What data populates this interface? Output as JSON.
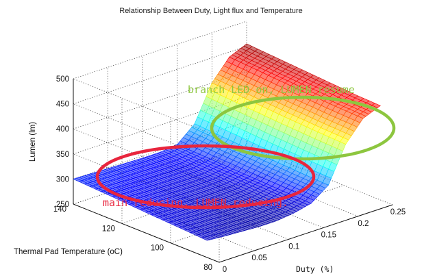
{
  "chart_data": {
    "type": "surface3d",
    "title": "Relationship Between Duty, Light flux and Temperature",
    "xlabel": "Duty (%)",
    "ylabel": "Thermal Pad Temperature (oC)",
    "zlabel": "Lumen (lm)",
    "xlim": [
      0,
      0.25
    ],
    "ylim": [
      80,
      140
    ],
    "zlim": [
      250,
      500
    ],
    "x_ticks": [
      "0",
      "0.05",
      "0.1",
      "0.15",
      "0.2",
      "0.25"
    ],
    "y_ticks": [
      "80",
      "100",
      "120",
      "140"
    ],
    "z_ticks": [
      "250",
      "300",
      "350",
      "400",
      "450",
      "500"
    ],
    "grid": true,
    "surface": {
      "duty": [
        0.0,
        0.025,
        0.05,
        0.075,
        0.1,
        0.125,
        0.15,
        0.175,
        0.2,
        0.225,
        0.25
      ],
      "temperature": [
        140,
        125,
        110,
        95,
        85
      ],
      "lumen": [
        [
          300,
          299,
          298,
          297,
          296,
          296,
          300,
          330,
          400,
          440,
          455
        ],
        [
          296,
          294,
          292,
          291,
          290,
          291,
          297,
          325,
          395,
          435,
          450
        ],
        [
          291,
          289,
          287,
          285,
          285,
          287,
          294,
          320,
          390,
          430,
          445
        ],
        [
          287,
          284,
          282,
          280,
          280,
          283,
          291,
          316,
          386,
          426,
          440
        ],
        [
          284,
          281,
          279,
          277,
          277,
          281,
          289,
          314,
          384,
          424,
          438
        ]
      ]
    },
    "annotations": [
      {
        "text": "branch LED on, LUMEN resume",
        "color": "#8dc63f"
      },
      {
        "text": "main reducing, LUMEN reducing.",
        "color": "#e8253d"
      }
    ],
    "colors": {
      "highlight_green": "#8dc63f",
      "highlight_red": "#e8253d"
    }
  }
}
